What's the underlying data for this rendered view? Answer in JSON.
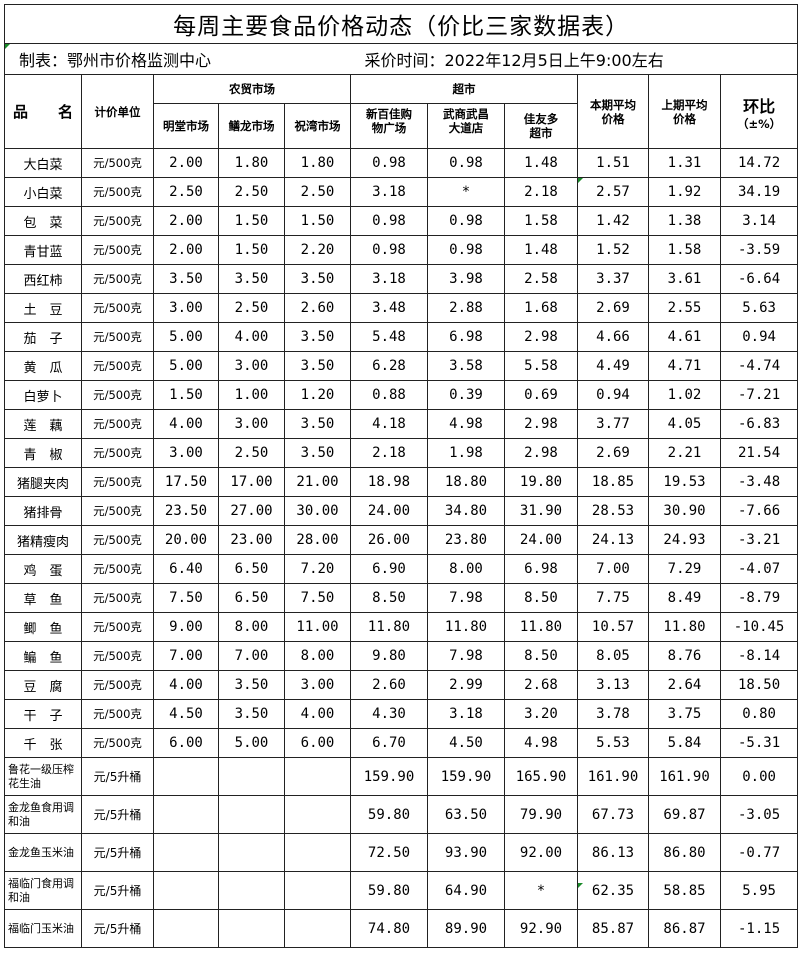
{
  "title": "每周主要食品价格动态（价比三家数据表）",
  "maker": "制表：鄂州市价格监测中心",
  "time": "采价时间：2022年12月5日上午9:00左右",
  "headers": {
    "name": "品　　名",
    "unit": "计价单位",
    "farm_group": "农贸市场",
    "super_group": "超市",
    "farm": [
      "明堂市场",
      "鳝龙市场",
      "祝湾市场"
    ],
    "super": [
      "新百佳购物广场",
      "武商武昌大道店",
      "佳友多超市"
    ],
    "cur_avg": "本期平均价格",
    "prev_avg": "上期平均价格",
    "change": "环比",
    "change_unit": "（±%）"
  },
  "rows": [
    [
      "大白菜",
      "元/500克",
      "2.00",
      "1.80",
      "1.80",
      "0.98",
      "0.98",
      "1.48",
      "1.51",
      "1.31",
      "14.72"
    ],
    [
      "小白菜",
      "元/500克",
      "2.50",
      "2.50",
      "2.50",
      "3.18",
      "*",
      "2.18",
      "2.57",
      "1.92",
      "34.19"
    ],
    [
      "包　菜",
      "元/500克",
      "2.00",
      "1.50",
      "1.50",
      "0.98",
      "0.98",
      "1.58",
      "1.42",
      "1.38",
      "3.14"
    ],
    [
      "青甘蓝",
      "元/500克",
      "2.00",
      "1.50",
      "2.20",
      "0.98",
      "0.98",
      "1.48",
      "1.52",
      "1.58",
      "-3.59"
    ],
    [
      "西红柿",
      "元/500克",
      "3.50",
      "3.50",
      "3.50",
      "3.18",
      "3.98",
      "2.58",
      "3.37",
      "3.61",
      "-6.64"
    ],
    [
      "土　豆",
      "元/500克",
      "3.00",
      "2.50",
      "2.60",
      "3.48",
      "2.88",
      "1.68",
      "2.69",
      "2.55",
      "5.63"
    ],
    [
      "茄　子",
      "元/500克",
      "5.00",
      "4.00",
      "3.50",
      "5.48",
      "6.98",
      "2.98",
      "4.66",
      "4.61",
      "0.94"
    ],
    [
      "黄　瓜",
      "元/500克",
      "5.00",
      "3.00",
      "3.50",
      "6.28",
      "3.58",
      "5.58",
      "4.49",
      "4.71",
      "-4.74"
    ],
    [
      "白萝卜",
      "元/500克",
      "1.50",
      "1.00",
      "1.20",
      "0.88",
      "0.39",
      "0.69",
      "0.94",
      "1.02",
      "-7.21"
    ],
    [
      "莲　藕",
      "元/500克",
      "4.00",
      "3.00",
      "3.50",
      "4.18",
      "4.98",
      "2.98",
      "3.77",
      "4.05",
      "-6.83"
    ],
    [
      "青　椒",
      "元/500克",
      "3.00",
      "2.50",
      "3.50",
      "2.18",
      "1.98",
      "2.98",
      "2.69",
      "2.21",
      "21.54"
    ],
    [
      "猪腿夹肉",
      "元/500克",
      "17.50",
      "17.00",
      "21.00",
      "18.98",
      "18.80",
      "19.80",
      "18.85",
      "19.53",
      "-3.48"
    ],
    [
      "猪排骨",
      "元/500克",
      "23.50",
      "27.00",
      "30.00",
      "24.00",
      "34.80",
      "31.90",
      "28.53",
      "30.90",
      "-7.66"
    ],
    [
      "猪精瘦肉",
      "元/500克",
      "20.00",
      "23.00",
      "28.00",
      "26.00",
      "23.80",
      "24.00",
      "24.13",
      "24.93",
      "-3.21"
    ],
    [
      "鸡　蛋",
      "元/500克",
      "6.40",
      "6.50",
      "7.20",
      "6.90",
      "8.00",
      "6.98",
      "7.00",
      "7.29",
      "-4.07"
    ],
    [
      "草　鱼",
      "元/500克",
      "7.50",
      "6.50",
      "7.50",
      "8.50",
      "7.98",
      "8.50",
      "7.75",
      "8.49",
      "-8.79"
    ],
    [
      "鲫　鱼",
      "元/500克",
      "9.00",
      "8.00",
      "11.00",
      "11.80",
      "11.80",
      "11.80",
      "10.57",
      "11.80",
      "-10.45"
    ],
    [
      "鳊　鱼",
      "元/500克",
      "7.00",
      "7.00",
      "8.00",
      "9.80",
      "7.98",
      "8.50",
      "8.05",
      "8.76",
      "-8.14"
    ],
    [
      "豆　腐",
      "元/500克",
      "4.00",
      "3.50",
      "3.00",
      "2.60",
      "2.99",
      "2.68",
      "3.13",
      "2.64",
      "18.50"
    ],
    [
      "干　子",
      "元/500克",
      "4.50",
      "3.50",
      "4.00",
      "4.30",
      "3.18",
      "3.20",
      "3.78",
      "3.75",
      "0.80"
    ],
    [
      "千　张",
      "元/500克",
      "6.00",
      "5.00",
      "6.00",
      "6.70",
      "4.50",
      "4.98",
      "5.53",
      "5.84",
      "-5.31"
    ]
  ],
  "oil_rows": [
    [
      "鲁花一级压榨花生油",
      "元/5升桶",
      "",
      "",
      "",
      "159.90",
      "159.90",
      "165.90",
      "161.90",
      "161.90",
      "0.00"
    ],
    [
      "金龙鱼食用调和油",
      "元/5升桶",
      "",
      "",
      "",
      "59.80",
      "63.50",
      "79.90",
      "67.73",
      "69.87",
      "-3.05"
    ],
    [
      "金龙鱼玉米油",
      "元/5升桶",
      "",
      "",
      "",
      "72.50",
      "93.90",
      "92.00",
      "86.13",
      "86.80",
      "-0.77"
    ],
    [
      "福临门食用调和油",
      "元/5升桶",
      "",
      "",
      "",
      "59.80",
      "64.90",
      "*",
      "62.35",
      "58.85",
      "5.95"
    ],
    [
      "福临门玉米油",
      "元/5升桶",
      "",
      "",
      "",
      "74.80",
      "89.90",
      "92.90",
      "85.87",
      "86.87",
      "-1.15"
    ]
  ]
}
